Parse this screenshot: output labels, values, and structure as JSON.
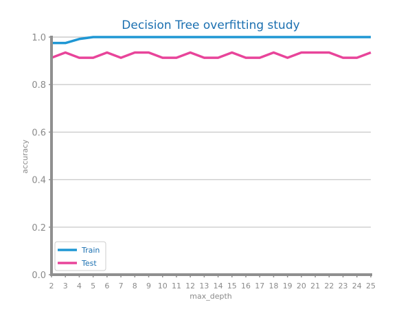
{
  "colors": {
    "train": "#1f97d4",
    "test": "#e8449a",
    "title": "#1a6fb0",
    "grid": "#cccccc",
    "axis": "#8f8f8f",
    "tick_text": "#8a8a8a"
  },
  "chart_data": {
    "type": "line",
    "title": "Decision Tree overfitting study",
    "xlabel": "max_depth",
    "ylabel": "accuracy",
    "x": [
      2,
      3,
      4,
      5,
      6,
      7,
      8,
      9,
      10,
      11,
      12,
      13,
      14,
      15,
      16,
      17,
      18,
      19,
      20,
      21,
      22,
      23,
      24,
      25
    ],
    "xlim": [
      2,
      25
    ],
    "ylim": [
      0,
      1.0
    ],
    "yticks": [
      "0.0",
      "0.2",
      "0.4",
      "0.6",
      "0.8",
      "1.0"
    ],
    "grid": "horizontal",
    "legend_position": "lower-left",
    "series": [
      {
        "name": "Train",
        "color": "#1f97d4",
        "values": [
          0.975,
          0.975,
          0.992,
          1.0,
          1.0,
          1.0,
          1.0,
          1.0,
          1.0,
          1.0,
          1.0,
          1.0,
          1.0,
          1.0,
          1.0,
          1.0,
          1.0,
          1.0,
          1.0,
          1.0,
          1.0,
          1.0,
          1.0,
          1.0
        ]
      },
      {
        "name": "Test",
        "color": "#e8449a",
        "values": [
          0.913,
          0.935,
          0.913,
          0.913,
          0.935,
          0.913,
          0.935,
          0.935,
          0.913,
          0.913,
          0.935,
          0.913,
          0.913,
          0.935,
          0.913,
          0.913,
          0.935,
          0.913,
          0.935,
          0.935,
          0.935,
          0.913,
          0.913,
          0.935
        ]
      }
    ]
  }
}
